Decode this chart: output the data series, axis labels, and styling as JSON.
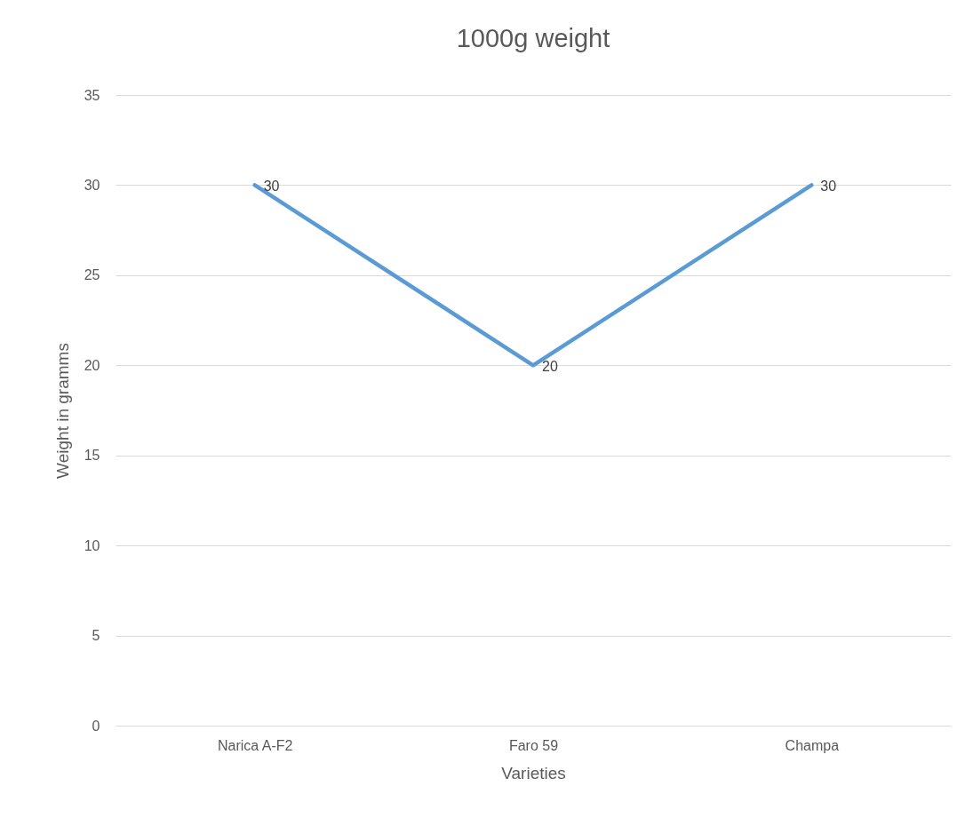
{
  "chart_data": {
    "type": "line",
    "title": "1000g weight",
    "xlabel": "Varieties",
    "ylabel": "Weight in gramms",
    "categories": [
      "Narica A-F2",
      "Faro 59",
      "Champa"
    ],
    "series": [
      {
        "color": "#5b9bd5",
        "values": [
          30,
          20,
          30
        ]
      }
    ],
    "ylim": [
      0,
      35
    ],
    "yticks": [
      0,
      5,
      10,
      15,
      20,
      25,
      30,
      35
    ],
    "grid": "y",
    "data_labels": true,
    "marker": "none",
    "line_style": "solid"
  }
}
